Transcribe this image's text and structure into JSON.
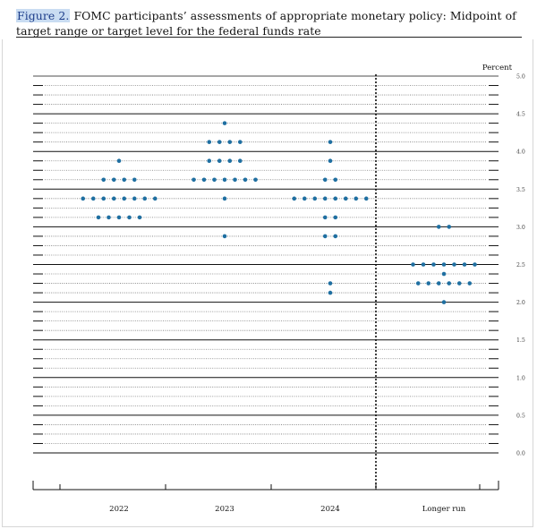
{
  "figure": {
    "label": "Figure 2.",
    "title": "FOMC participants’ assessments of appropriate monetary policy: Midpoint of target range or target level for the federal funds rate"
  },
  "colors": {
    "dot": "#1f6fa1",
    "axis": "#111111",
    "dotted_line": "#7a7a7a",
    "figure_label_bg": "#c9dcf2"
  },
  "chart_data": {
    "type": "scatter",
    "unit_label": "Percent",
    "categories": [
      "2022",
      "2023",
      "2024",
      "Longer run"
    ],
    "ylim": [
      0,
      5
    ],
    "yticks": [
      "5.0",
      "4.5",
      "4.0",
      "3.5",
      "3.0",
      "2.5",
      "2.0",
      "1.5",
      "1.0",
      "0.5",
      "0.0"
    ],
    "grid": "dotted horizontal lines every 0.125, solid every 0.5",
    "separator": "vertical dotted line between 2024 and Longer run",
    "legend": "none",
    "series": [
      {
        "category": "2022",
        "points": [
          {
            "y": 3.875,
            "count": 1
          },
          {
            "y": 3.625,
            "count": 4
          },
          {
            "y": 3.375,
            "count": 8
          },
          {
            "y": 3.125,
            "count": 5
          }
        ]
      },
      {
        "category": "2023",
        "points": [
          {
            "y": 4.375,
            "count": 1
          },
          {
            "y": 4.125,
            "count": 4
          },
          {
            "y": 3.875,
            "count": 4
          },
          {
            "y": 3.625,
            "count": 7
          },
          {
            "y": 3.375,
            "count": 1
          },
          {
            "y": 2.875,
            "count": 1
          }
        ]
      },
      {
        "category": "2024",
        "points": [
          {
            "y": 4.125,
            "count": 1
          },
          {
            "y": 3.875,
            "count": 1
          },
          {
            "y": 3.625,
            "count": 2
          },
          {
            "y": 3.375,
            "count": 8
          },
          {
            "y": 3.125,
            "count": 2
          },
          {
            "y": 2.875,
            "count": 2
          },
          {
            "y": 2.25,
            "count": 1
          },
          {
            "y": 2.125,
            "count": 1
          }
        ]
      },
      {
        "category": "Longer run",
        "points": [
          {
            "y": 3.0,
            "count": 2
          },
          {
            "y": 2.5,
            "count": 7
          },
          {
            "y": 2.375,
            "count": 1
          },
          {
            "y": 2.25,
            "count": 6
          },
          {
            "y": 2.0,
            "count": 1
          }
        ]
      }
    ]
  }
}
